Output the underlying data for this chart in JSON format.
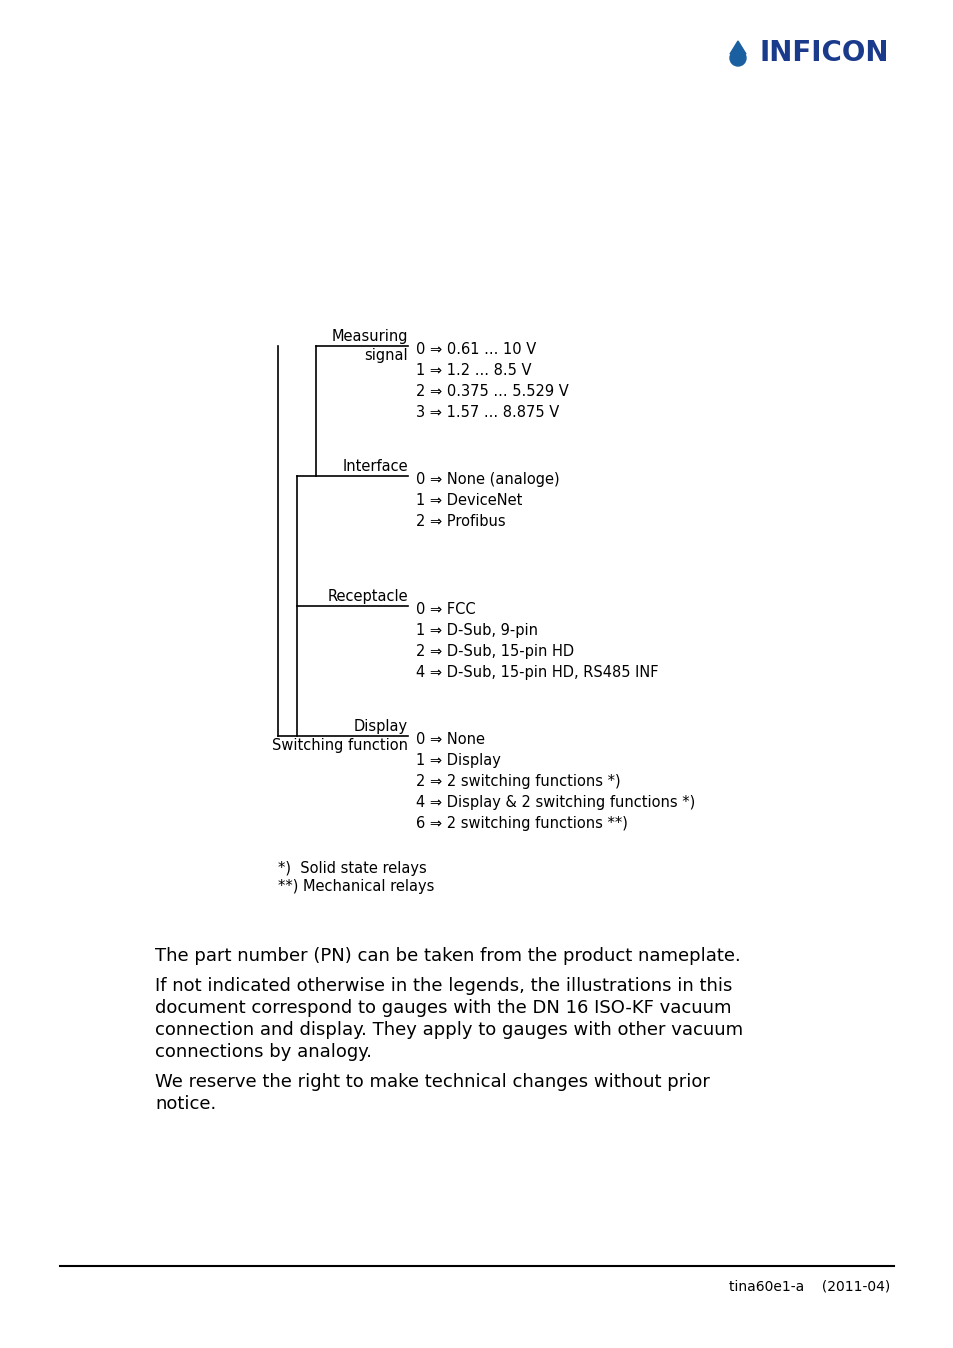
{
  "bg_color": "#ffffff",
  "text_color": "#000000",
  "logo_text": "INFICON",
  "logo_color": "#1a3a8c",
  "logo_icon_color": "#1a5fa0",
  "footer_text": "tina60e1-a    (2011-04)",
  "diagram": {
    "measuring_items": [
      "0 ⇒ 0.61 ... 10 V",
      "1 ⇒ 1.2 ... 8.5 V",
      "2 ⇒ 0.375 ... 5.529 V",
      "3 ⇒ 1.57 ... 8.875 V"
    ],
    "interface_items": [
      "0 ⇒ None (analoge)",
      "1 ⇒ DeviceNet",
      "2 ⇒ Profibus"
    ],
    "receptacle_items": [
      "0 ⇒ FCC",
      "1 ⇒ D-Sub, 9-pin",
      "2 ⇒ D-Sub, 15-pin HD",
      "4 ⇒ D-Sub, 15-pin HD, RS485 INF"
    ],
    "display_items": [
      "0 ⇒ None",
      "1 ⇒ Display",
      "2 ⇒ 2 switching functions *)",
      "4 ⇒ Display & 2 switching functions *)",
      "6 ⇒ 2 switching functions **)"
    ]
  },
  "footnotes": [
    "*)  Solid state relays",
    "**) Mechanical relays"
  ],
  "paragraph1": "The part number (PN) can be taken from the product nameplate.",
  "paragraph2": "If not indicated otherwise in the legends, the illustrations in this\ndocument correspond to gauges with the DN 16 ISO-KF vacuum\nconnection and display. They apply to gauges with other vacuum\nconnections by analogy.",
  "paragraph3": "We reserve the right to make technical changes without prior\nnotice."
}
